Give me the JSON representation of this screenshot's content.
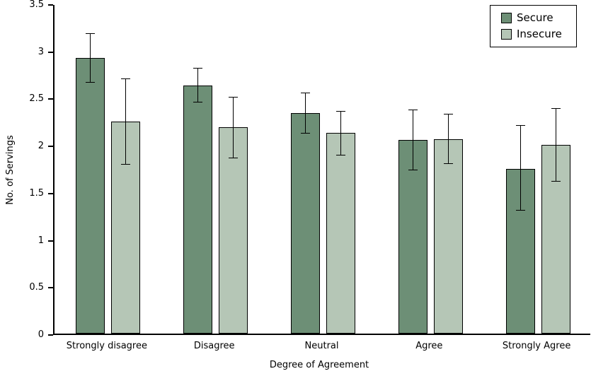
{
  "chart_data": {
    "type": "bar",
    "title": "",
    "xlabel": "Degree of Agreement",
    "ylabel": "No. of Servings",
    "categories": [
      "Strongly disagree",
      "Disagree",
      "Neutral",
      "Agree",
      "Strongly Agree"
    ],
    "series": [
      {
        "name": "Secure",
        "color": "#6d8f76",
        "values": [
          2.92,
          2.63,
          2.34,
          2.05,
          1.75
        ],
        "error_low": [
          2.67,
          2.46,
          2.13,
          1.74,
          1.31
        ],
        "error_high": [
          3.18,
          2.81,
          2.55,
          2.37,
          2.2
        ]
      },
      {
        "name": "Insecure",
        "color": "#b5c6b6",
        "values": [
          2.25,
          2.19,
          2.13,
          2.06,
          2.0
        ],
        "error_low": [
          1.8,
          1.87,
          1.9,
          1.81,
          1.62
        ],
        "error_high": [
          2.7,
          2.5,
          2.35,
          2.32,
          2.38
        ]
      }
    ],
    "ylim": [
      0,
      3.5
    ],
    "yticks": [
      0,
      0.5,
      1,
      1.5,
      2,
      2.5,
      3,
      3.5
    ],
    "ytick_labels": [
      "0",
      "0.5",
      "1",
      "1.5",
      "2",
      "2.5",
      "3",
      "3.5"
    ],
    "grid": false,
    "legend_position": "top-right",
    "axis_color": "#000000",
    "error_bar_color": "#000000",
    "background_color": "#ffffff"
  }
}
